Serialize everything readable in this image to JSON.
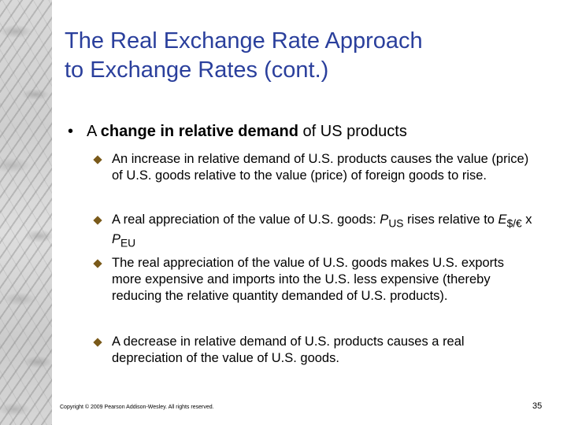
{
  "slide": {
    "title_line1": "The Real Exchange Rate Approach",
    "title_line2": "to Exchange Rates (cont.)",
    "bullet": {
      "prefix": "A ",
      "bold": "change in relative demand",
      "suffix": " of US products"
    },
    "subbullets": {
      "s1": "An increase in relative demand of U.S. products causes the value (price) of U.S. goods relative to the value (price) of foreign goods to rise.",
      "s2a": "A real appreciation of the value of U.S. goods: ",
      "s2_p": "P",
      "s2_us": "US",
      "s2b": " rises relative to ",
      "s2_e": "E",
      "s2_euro": "$/€",
      "s2c": " x ",
      "s2_p2": "P",
      "s2_eu": "EU",
      "s3": "The real appreciation of the value of U.S. goods makes U.S. exports more expensive and imports into the U.S. less expensive (thereby reducing the relative quantity demanded of U.S. products).",
      "s4": "A decrease in relative demand of U.S. products causes a real depreciation of the value of U.S. goods."
    },
    "footer": "Copyright © 2009 Pearson Addison-Wesley. All rights reserved.",
    "page_number": "35"
  },
  "colors": {
    "title": "#2a3f9c",
    "diamond": "#7a5a1a"
  }
}
